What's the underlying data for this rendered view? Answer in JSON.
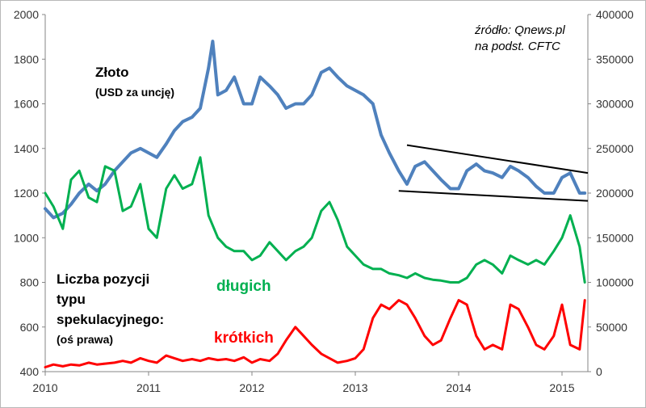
{
  "chart_data": {
    "type": "line",
    "x_ticks": [
      "2010",
      "2011",
      "2012",
      "2013",
      "2014",
      "2015"
    ],
    "y_left_ticks": [
      "400",
      "600",
      "800",
      "1000",
      "1200",
      "1400",
      "1600",
      "1800",
      "2000"
    ],
    "y_right_ticks": [
      "0",
      "50000",
      "100000",
      "150000",
      "200000",
      "250000",
      "300000",
      "350000",
      "400000"
    ],
    "y_left_range": [
      400,
      2000
    ],
    "y_right_range": [
      0,
      400000
    ],
    "x_range": [
      2010,
      2015.25
    ],
    "grid": false,
    "annotations": {
      "source_line1": "źródło: Qnews.pl",
      "source_line2": "na podst. CFTC",
      "gold_title": "Złoto",
      "gold_unit": "(USD za uncję)",
      "positions_line1": "Liczba pozycji",
      "positions_line2": "typu",
      "positions_line3": "spekulacyjnego:",
      "positions_axis": "(oś prawa)",
      "long_label": "długich",
      "short_label": "krótkich"
    },
    "series": [
      {
        "axis": "left",
        "color": "#4f81bd",
        "x": [
          2010.0,
          2010.08,
          2010.17,
          2010.25,
          2010.33,
          2010.42,
          2010.5,
          2010.58,
          2010.67,
          2010.75,
          2010.83,
          2010.92,
          2011.0,
          2011.08,
          2011.17,
          2011.25,
          2011.33,
          2011.42,
          2011.5,
          2011.58,
          2011.62,
          2011.67,
          2011.75,
          2011.83,
          2011.92,
          2012.0,
          2012.08,
          2012.17,
          2012.25,
          2012.33,
          2012.42,
          2012.5,
          2012.58,
          2012.67,
          2012.75,
          2012.83,
          2012.92,
          2013.0,
          2013.08,
          2013.17,
          2013.25,
          2013.33,
          2013.42,
          2013.5,
          2013.58,
          2013.67,
          2013.75,
          2013.83,
          2013.92,
          2014.0,
          2014.08,
          2014.17,
          2014.25,
          2014.33,
          2014.42,
          2014.5,
          2014.58,
          2014.67,
          2014.75,
          2014.83,
          2014.92,
          2015.0,
          2015.08,
          2015.17,
          2015.22
        ],
        "y": [
          1130,
          1090,
          1110,
          1150,
          1200,
          1240,
          1210,
          1240,
          1300,
          1340,
          1380,
          1400,
          1380,
          1360,
          1420,
          1480,
          1520,
          1540,
          1580,
          1760,
          1880,
          1640,
          1660,
          1720,
          1600,
          1600,
          1720,
          1680,
          1640,
          1580,
          1600,
          1600,
          1640,
          1740,
          1760,
          1720,
          1680,
          1660,
          1640,
          1600,
          1460,
          1380,
          1300,
          1240,
          1320,
          1340,
          1300,
          1260,
          1220,
          1220,
          1300,
          1330,
          1300,
          1290,
          1270,
          1320,
          1300,
          1270,
          1230,
          1200,
          1200,
          1270,
          1290,
          1200,
          1200
        ]
      },
      {
        "axis": "right",
        "color": "#00b050",
        "x": [
          2010.0,
          2010.08,
          2010.17,
          2010.25,
          2010.33,
          2010.42,
          2010.5,
          2010.58,
          2010.67,
          2010.75,
          2010.83,
          2010.92,
          2011.0,
          2011.08,
          2011.17,
          2011.25,
          2011.33,
          2011.42,
          2011.5,
          2011.58,
          2011.67,
          2011.75,
          2011.83,
          2011.92,
          2012.0,
          2012.08,
          2012.17,
          2012.25,
          2012.33,
          2012.42,
          2012.5,
          2012.58,
          2012.67,
          2012.75,
          2012.83,
          2012.92,
          2013.0,
          2013.08,
          2013.17,
          2013.25,
          2013.33,
          2013.42,
          2013.5,
          2013.58,
          2013.67,
          2013.75,
          2013.83,
          2013.92,
          2014.0,
          2014.08,
          2014.17,
          2014.25,
          2014.33,
          2014.42,
          2014.5,
          2014.58,
          2014.67,
          2014.75,
          2014.83,
          2014.92,
          2015.0,
          2015.08,
          2015.17,
          2015.22
        ],
        "y": [
          200000,
          185000,
          160000,
          215000,
          225000,
          195000,
          190000,
          230000,
          225000,
          180000,
          185000,
          210000,
          160000,
          150000,
          205000,
          220000,
          205000,
          210000,
          240000,
          175000,
          150000,
          140000,
          135000,
          135000,
          125000,
          130000,
          145000,
          135000,
          125000,
          135000,
          140000,
          150000,
          180000,
          190000,
          170000,
          140000,
          130000,
          120000,
          115000,
          115000,
          110000,
          108000,
          105000,
          110000,
          105000,
          103000,
          102000,
          100000,
          100000,
          105000,
          120000,
          125000,
          120000,
          110000,
          130000,
          125000,
          120000,
          125000,
          120000,
          135000,
          150000,
          175000,
          140000,
          100000
        ]
      },
      {
        "axis": "right",
        "color": "#ff0000",
        "x": [
          2010.0,
          2010.08,
          2010.17,
          2010.25,
          2010.33,
          2010.42,
          2010.5,
          2010.58,
          2010.67,
          2010.75,
          2010.83,
          2010.92,
          2011.0,
          2011.08,
          2011.17,
          2011.25,
          2011.33,
          2011.42,
          2011.5,
          2011.58,
          2011.67,
          2011.75,
          2011.83,
          2011.92,
          2012.0,
          2012.08,
          2012.17,
          2012.25,
          2012.33,
          2012.42,
          2012.5,
          2012.58,
          2012.67,
          2012.75,
          2012.83,
          2012.92,
          2013.0,
          2013.08,
          2013.17,
          2013.25,
          2013.33,
          2013.42,
          2013.5,
          2013.58,
          2013.67,
          2013.75,
          2013.83,
          2013.92,
          2014.0,
          2014.08,
          2014.17,
          2014.25,
          2014.33,
          2014.42,
          2014.5,
          2014.58,
          2014.67,
          2014.75,
          2014.83,
          2014.92,
          2015.0,
          2015.08,
          2015.17,
          2015.22
        ],
        "y": [
          5000,
          8000,
          6000,
          8000,
          7000,
          10000,
          8000,
          9000,
          10000,
          12000,
          10000,
          15000,
          12000,
          10000,
          18000,
          15000,
          12000,
          14000,
          12000,
          15000,
          13000,
          14000,
          12000,
          16000,
          10000,
          14000,
          12000,
          20000,
          35000,
          50000,
          40000,
          30000,
          20000,
          15000,
          10000,
          12000,
          15000,
          25000,
          60000,
          75000,
          70000,
          80000,
          75000,
          60000,
          40000,
          30000,
          35000,
          60000,
          80000,
          75000,
          40000,
          25000,
          30000,
          25000,
          75000,
          70000,
          50000,
          30000,
          25000,
          40000,
          75000,
          30000,
          25000,
          80000
        ]
      }
    ],
    "trend_lines": [
      {
        "x": [
          2013.5,
          2015.25
        ],
        "y": [
          1415,
          1290
        ]
      },
      {
        "x": [
          2013.42,
          2015.25
        ],
        "y": [
          1210,
          1165
        ]
      }
    ]
  }
}
